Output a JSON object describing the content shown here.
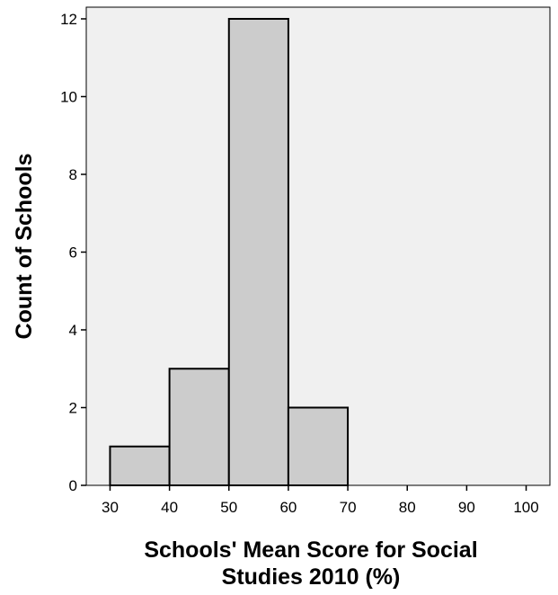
{
  "chart_data": {
    "type": "bar",
    "title": "",
    "xlabel_lines": [
      "Schools' Mean Score for Social",
      "Studies 2010 (%)"
    ],
    "ylabel": "Count of Schools",
    "x_ticks": [
      30,
      40,
      50,
      60,
      70,
      80,
      90,
      100
    ],
    "y_ticks": [
      0,
      2,
      4,
      6,
      8,
      10,
      12
    ],
    "xlim": [
      26,
      104
    ],
    "ylim": [
      0,
      12.3
    ],
    "bins": [
      {
        "from": 30,
        "to": 40,
        "count": 1
      },
      {
        "from": 40,
        "to": 50,
        "count": 3
      },
      {
        "from": 50,
        "to": 60,
        "count": 12
      },
      {
        "from": 60,
        "to": 70,
        "count": 2
      }
    ],
    "grid": false,
    "colors": {
      "plot_background": "#f0f0f0",
      "bar_fill": "#cccccc",
      "bar_stroke": "#000000"
    }
  }
}
